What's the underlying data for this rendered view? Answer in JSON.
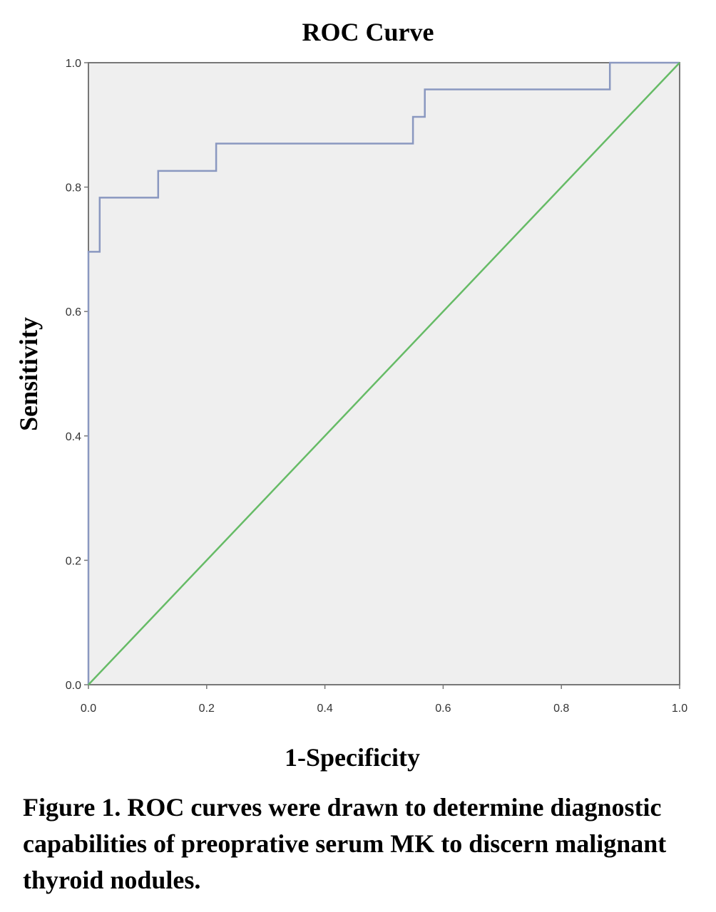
{
  "chart_data": {
    "type": "line",
    "title": "ROC Curve",
    "xlabel": "1-Specificity",
    "ylabel": "Sensitivity",
    "xlim": [
      0,
      1
    ],
    "ylim": [
      0,
      1
    ],
    "x_ticks": [
      "0.0",
      "0.2",
      "0.4",
      "0.6",
      "0.8",
      "1.0"
    ],
    "y_ticks": [
      "0.0",
      "0.2",
      "0.4",
      "0.6",
      "0.8",
      "1.0"
    ],
    "grid": false,
    "series": [
      {
        "kind": "step",
        "color": "#8a98c0",
        "points": [
          [
            0.0,
            0.0
          ],
          [
            0.0,
            0.696
          ],
          [
            0.019,
            0.696
          ],
          [
            0.019,
            0.783
          ],
          [
            0.118,
            0.783
          ],
          [
            0.118,
            0.826
          ],
          [
            0.216,
            0.826
          ],
          [
            0.216,
            0.87
          ],
          [
            0.549,
            0.87
          ],
          [
            0.549,
            0.913
          ],
          [
            0.569,
            0.913
          ],
          [
            0.569,
            0.957
          ],
          [
            0.882,
            0.957
          ],
          [
            0.882,
            1.0
          ],
          [
            1.0,
            1.0
          ]
        ]
      },
      {
        "kind": "reference",
        "color": "#66bb66",
        "points": [
          [
            0,
            0
          ],
          [
            1,
            1
          ]
        ]
      }
    ],
    "colors": {
      "plot_background": "#efefef",
      "frame": "#777777"
    }
  },
  "caption": "Figure 1. ROC curves were drawn to determine diagnostic capabilities of preoprative serum MK to discern  malignant thyroid nodules."
}
